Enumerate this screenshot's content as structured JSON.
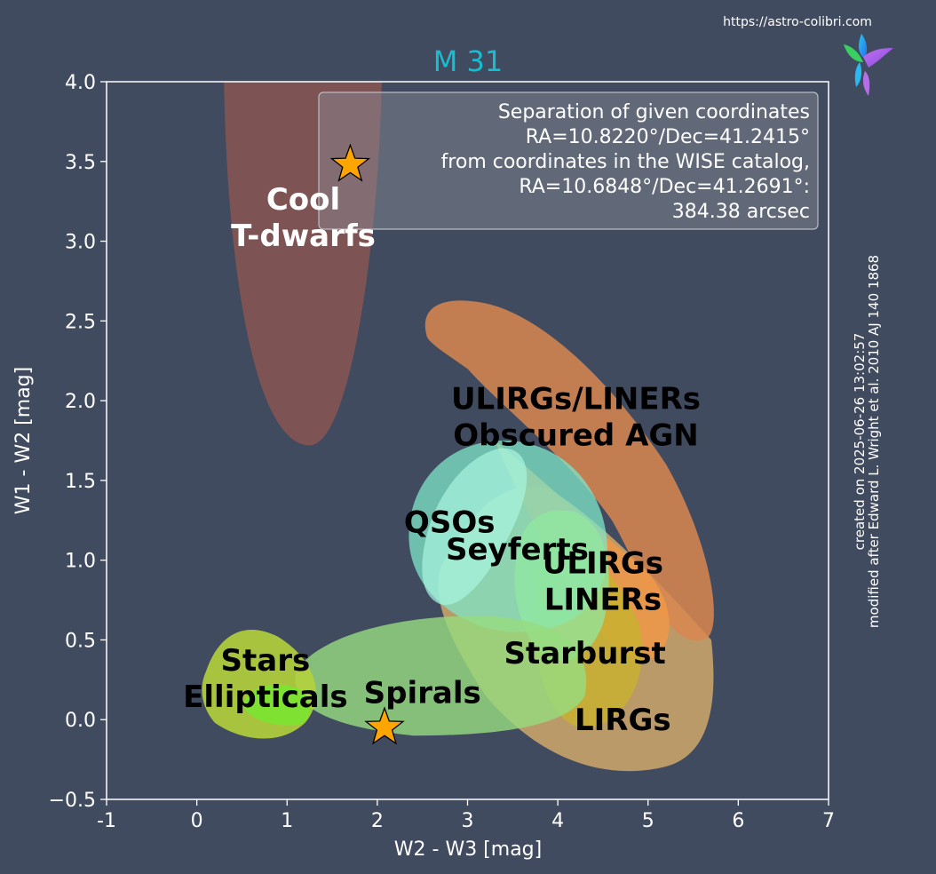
{
  "source_url": "https://astro-colibri.com",
  "side_note": [
    "created on 2025-06-26 13:02:57",
    "modified after Edward L. Wright et al. 2010 AJ 140 1868"
  ],
  "colors": {
    "background": "#414b60",
    "title": "#17becf",
    "marker": "#ffa500"
  },
  "chart_data": {
    "type": "scatter",
    "title": "M 31",
    "xlabel": "W2 - W3 [mag]",
    "ylabel": "W1 - W2 [mag]",
    "xlim": [
      -1,
      7
    ],
    "ylim": [
      -0.5,
      4.0
    ],
    "grid": false,
    "xticks": [
      "-1",
      "0",
      "1",
      "2",
      "3",
      "4",
      "5",
      "6",
      "7"
    ],
    "yticks": [
      "−0.5",
      "0.0",
      "0.5",
      "1.0",
      "1.5",
      "2.0",
      "2.5",
      "3.0",
      "3.5",
      "4.0"
    ],
    "points": [
      {
        "x": 1.7,
        "y": 3.48,
        "marker": "star"
      },
      {
        "x": 2.08,
        "y": -0.05,
        "marker": "star"
      }
    ],
    "annotation_box": {
      "position": "top-right",
      "lines": [
        "Separation of given coordinates",
        "RA=10.8220°/Dec=41.2415°",
        "from coordinates in the WISE catalog,",
        "RA=10.6848°/Dec=41.2691°:",
        "384.38 arcsec"
      ]
    },
    "regions": [
      {
        "name": "Cool T-dwarfs",
        "lines": [
          "Cool",
          "T-dwarfs"
        ],
        "color": "#8c5550",
        "label_x": 1.18,
        "label_y": 3.15,
        "label_color": "#ffffff"
      },
      {
        "name": "ULIRGs/LINERs Obscured AGN",
        "lines": [
          "ULIRGs/LINERs",
          "Obscured AGN"
        ],
        "color": "#d9874f",
        "label_x": 4.2,
        "label_y": 1.9,
        "label_color": "#000000"
      },
      {
        "name": "LIRGs",
        "lines": [
          "LIRGs"
        ],
        "color": "#c9a36b",
        "label_x": 4.72,
        "label_y": 0.0,
        "label_color": "#000000"
      },
      {
        "name": "Starburst",
        "lines": [
          "Starburst"
        ],
        "color": "#c8b030",
        "label_x": 4.3,
        "label_y": 0.42,
        "label_color": "#000000"
      },
      {
        "name": "ULIRGs LINERs",
        "lines": [
          "ULIRGs",
          "LINERs"
        ],
        "color": "#f09848",
        "label_x": 4.5,
        "label_y": 0.87,
        "label_color": "#000000"
      },
      {
        "name": "Seyferts",
        "lines": [
          "Seyferts"
        ],
        "color": "#90e8a0",
        "label_x": 3.55,
        "label_y": 1.07,
        "label_color": "#000000"
      },
      {
        "name": "QSOs",
        "lines": [
          "QSOs"
        ],
        "color": "#7ee6c8",
        "label_x": 2.8,
        "label_y": 1.24,
        "label_color": "#000000"
      },
      {
        "name": "Spirals",
        "lines": [
          "Spirals"
        ],
        "color": "#96dc80",
        "label_x": 2.5,
        "label_y": 0.17,
        "label_color": "#000000"
      },
      {
        "name": "Stars Ellipticals",
        "lines": [
          "Stars",
          "Ellipticals"
        ],
        "color": "#b4d23c",
        "label_x": 0.76,
        "label_y": 0.26,
        "label_color": "#000000"
      }
    ]
  }
}
